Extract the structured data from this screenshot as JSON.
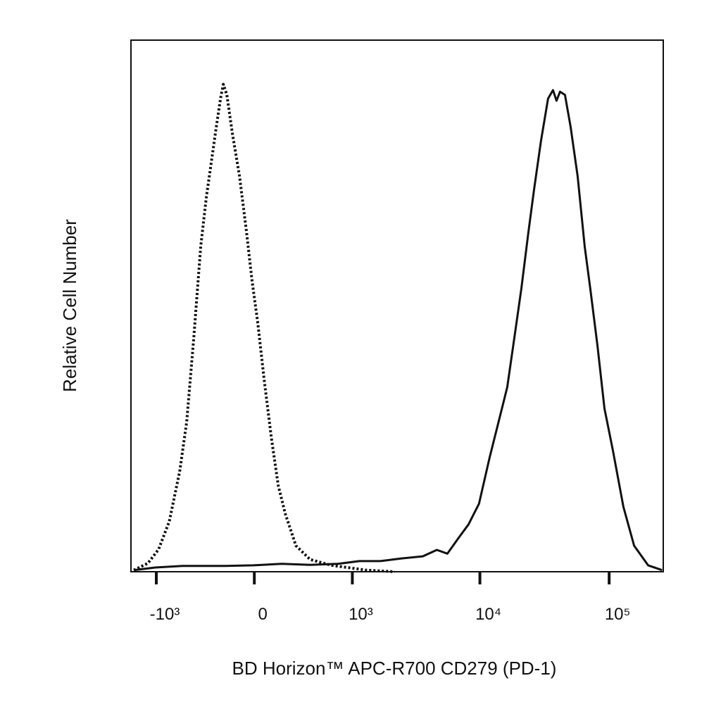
{
  "chart_data": {
    "type": "line",
    "x_label": "BD Horizon™ APC-R700 CD279 (PD-1)",
    "y_label": "Relative Cell Number",
    "xscale": "biexponential",
    "xlim": [
      -1600,
      262144
    ],
    "ylim": [
      0,
      100
    ],
    "xticks": [
      {
        "value": -1000,
        "label": "-10³"
      },
      0,
      {
        "value": 1000,
        "label": "10³"
      },
      {
        "value": 10000,
        "label": "10⁴"
      },
      {
        "value": 100000,
        "label": "10⁵"
      }
    ],
    "series": [
      {
        "style": "dotted",
        "color": "#111111",
        "x": [
          -1519,
          -1170,
          -958,
          -778,
          -633,
          -547,
          -468,
          -398,
          -346,
          -303,
          -263,
          -230,
          -209,
          -183,
          -144,
          -96,
          -50,
          -14,
          23,
          64,
          110,
          158,
          209,
          292,
          419,
          666,
          1300,
          2174
        ],
        "values": [
          0.3,
          1.6,
          4.2,
          9.5,
          18.8,
          28.1,
          44.0,
          61.2,
          70.5,
          77.1,
          83.7,
          89.0,
          91.7,
          89.7,
          82.4,
          74.4,
          63.8,
          54.6,
          46.6,
          36.0,
          25.4,
          16.2,
          10.9,
          4.9,
          2.3,
          1.2,
          0.3,
          0
        ]
      },
      {
        "style": "solid",
        "color": "#111111",
        "x": [
          -1519,
          -1022,
          -590,
          -193,
          -5,
          183,
          419,
          760,
          1138,
          1681,
          2466,
          3610,
          4637,
          5602,
          6761,
          8158,
          9846,
          11891,
          14357,
          16272,
          18468,
          20916,
          23724,
          26208,
          29736,
          33696,
          36792,
          39168,
          41688,
          45540,
          50328,
          57060,
          64692,
          71532,
          81108,
          91980,
          106920,
          128880,
          155880,
          200160,
          256680
        ],
        "values": [
          0.3,
          0.8,
          1.1,
          1.1,
          1.2,
          1.5,
          1.3,
          1.5,
          2.0,
          2.0,
          2.5,
          2.9,
          4.1,
          3.4,
          6.2,
          8.9,
          12.8,
          21.5,
          29.4,
          34.7,
          44.0,
          53.2,
          63.8,
          71.8,
          81.1,
          89.0,
          90.6,
          88.6,
          90.3,
          89.7,
          83.7,
          74.4,
          61.2,
          53.2,
          42.6,
          30.7,
          22.8,
          12.2,
          4.9,
          1.2,
          0.3
        ]
      }
    ]
  }
}
